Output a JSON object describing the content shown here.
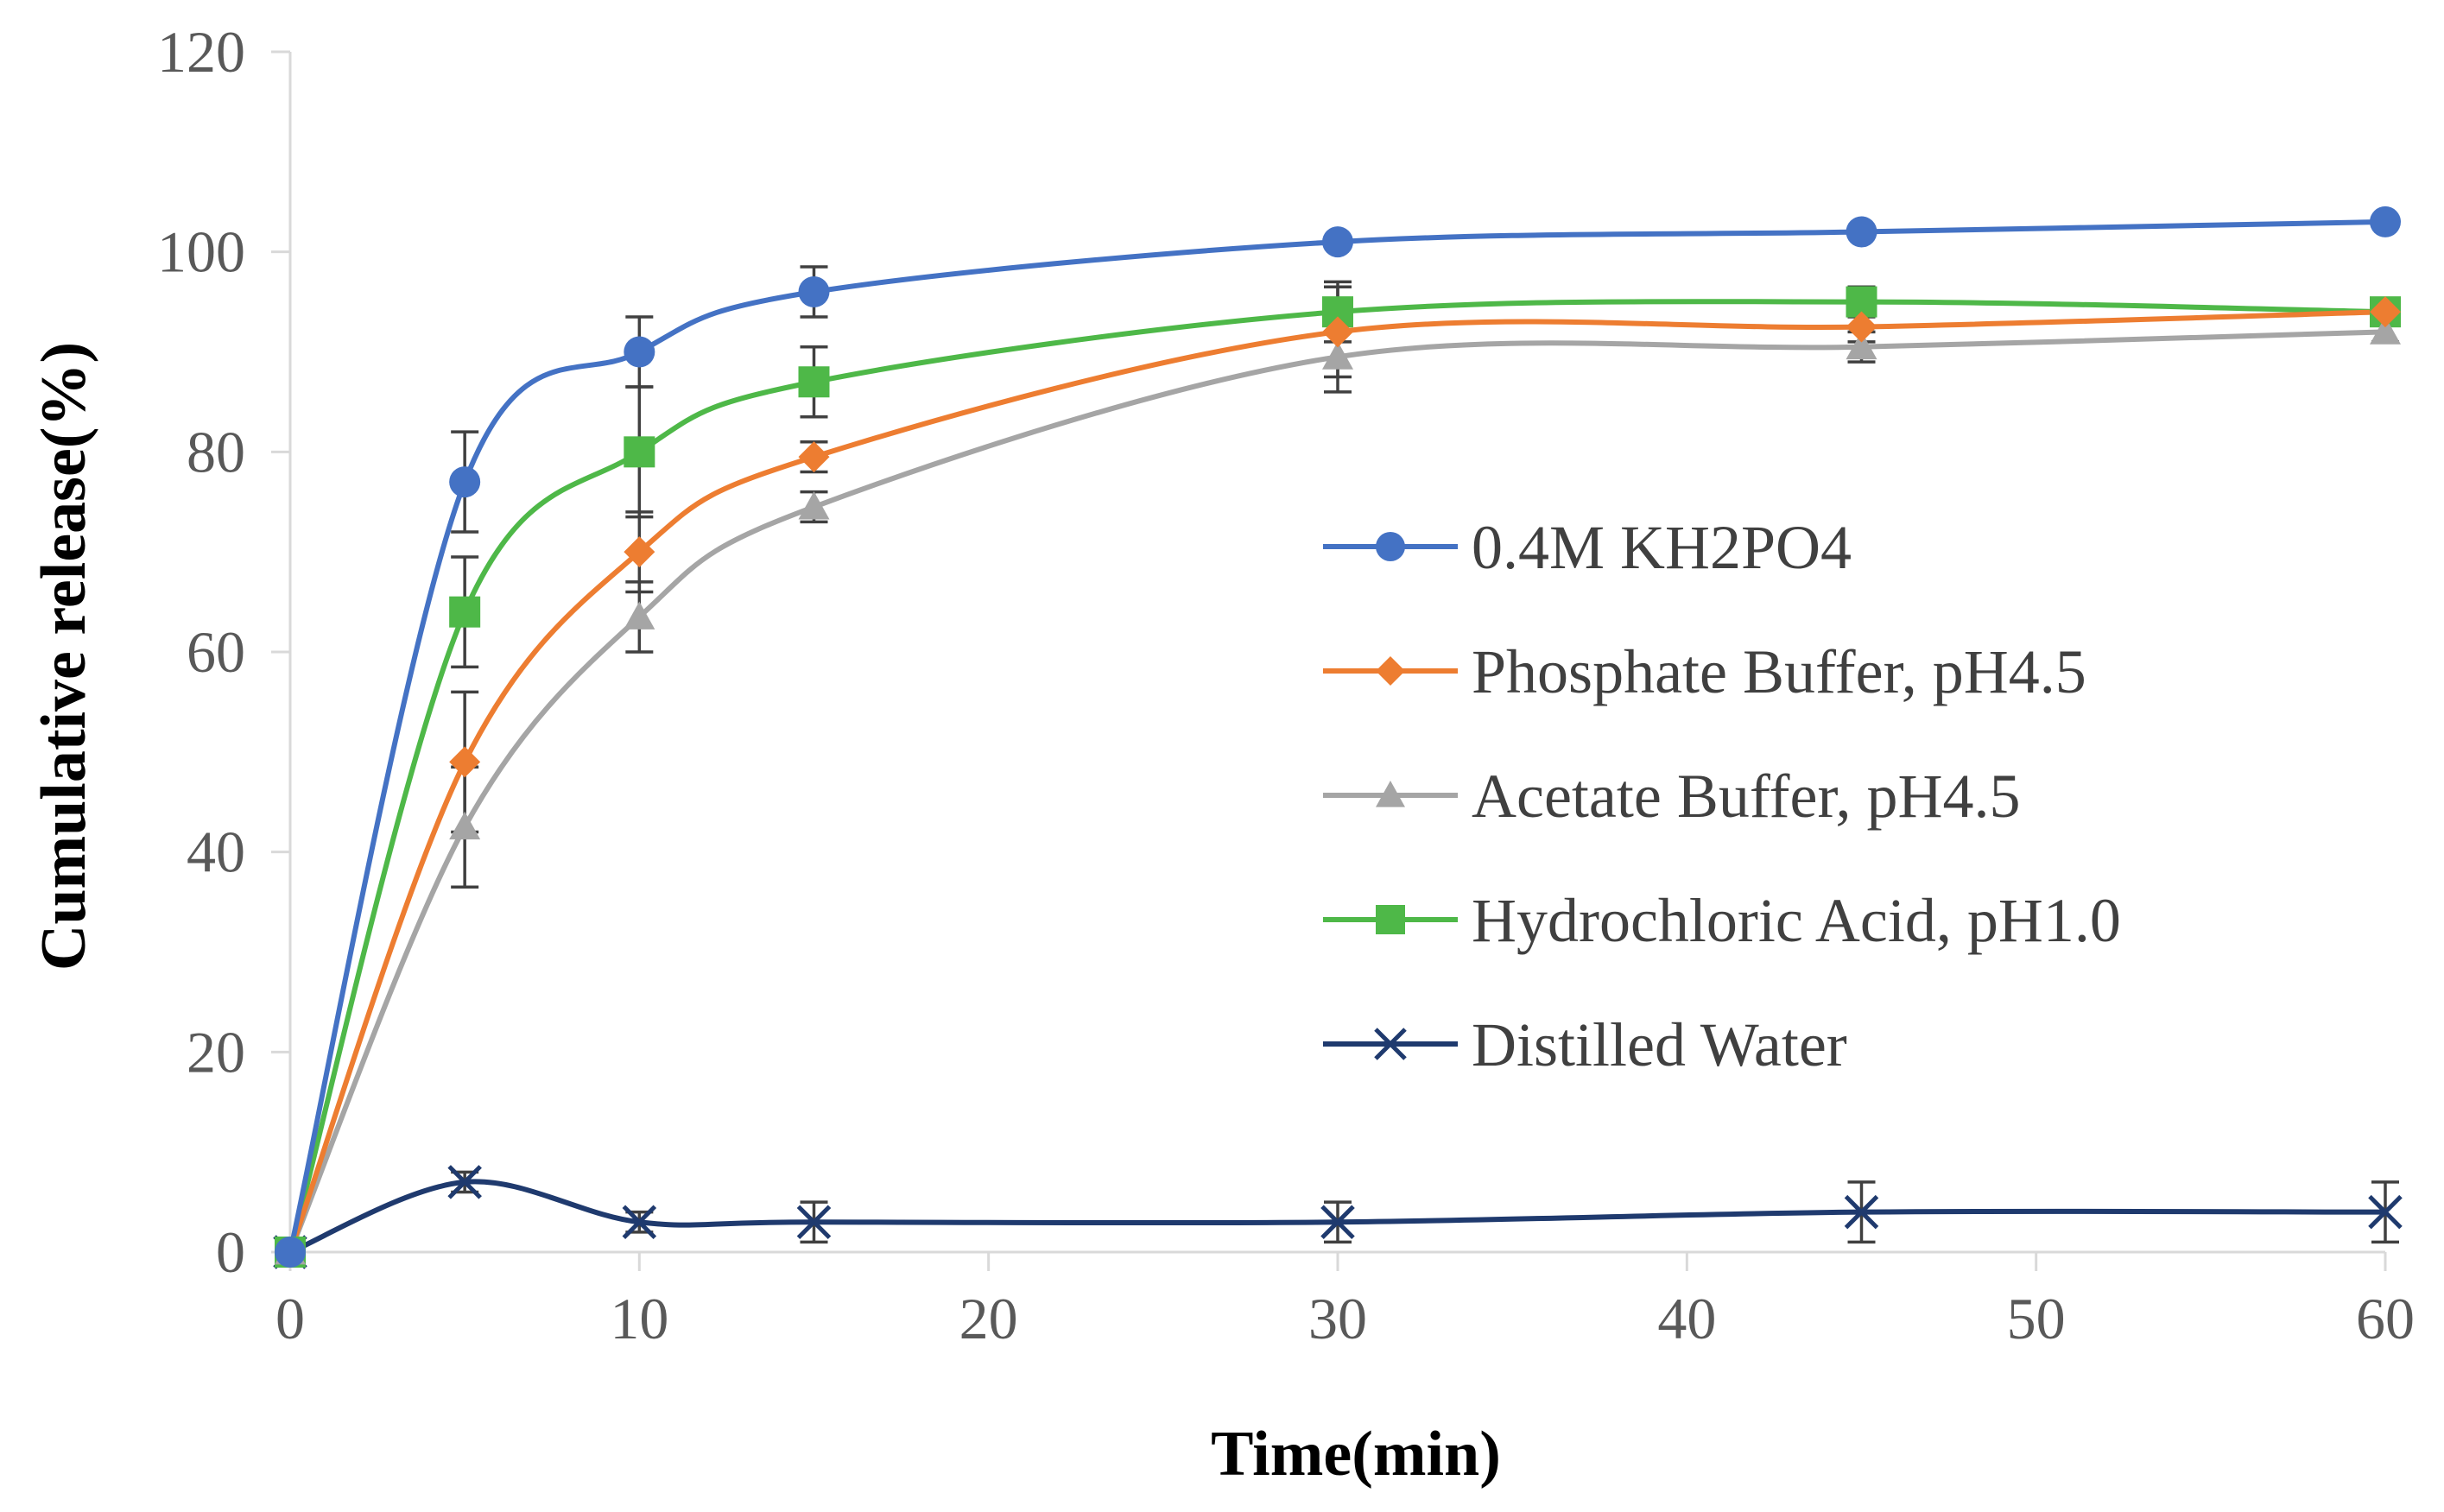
{
  "chart_data": {
    "type": "line",
    "title": "",
    "xlabel": "Time(min)",
    "ylabel": "Cumulative  release(%)",
    "xlim": [
      0,
      60
    ],
    "ylim": [
      0,
      120
    ],
    "x_ticks": [
      0,
      10,
      20,
      30,
      40,
      50,
      60
    ],
    "y_ticks": [
      0,
      20,
      40,
      60,
      80,
      100,
      120
    ],
    "x": [
      0,
      5,
      10,
      15,
      30,
      45,
      60
    ],
    "grid": false,
    "legend_position": "right",
    "series": [
      {
        "name": "0.4M KH2PO4",
        "color": "#4472C4",
        "marker": "circle",
        "values": [
          0,
          77,
          90,
          96,
          101,
          102,
          103
        ],
        "errors": [
          0,
          5,
          3.5,
          2.5,
          0,
          0,
          0
        ]
      },
      {
        "name": "Phosphate Buffer, pH4.5",
        "color": "#ED7D31",
        "marker": "diamond",
        "values": [
          0,
          49,
          70,
          79.5,
          92,
          92.5,
          94
        ],
        "errors": [
          0,
          7,
          4,
          1.5,
          4.5,
          1.5,
          1
        ]
      },
      {
        "name": "Acetate Buffer, pH4.5",
        "color": "#A5A5A5",
        "marker": "triangle",
        "values": [
          0,
          42.5,
          63.5,
          74.5,
          89.5,
          90.5,
          92
        ],
        "errors": [
          0,
          6,
          3.5,
          1.5,
          3.5,
          1.5,
          1
        ]
      },
      {
        "name": "Hydrochloric Acid, pH1.0",
        "color": "#4EB848",
        "marker": "square",
        "values": [
          0,
          64,
          80,
          87,
          94,
          95,
          94
        ],
        "errors": [
          0,
          5.5,
          6.5,
          3.5,
          3,
          1.5,
          1
        ]
      },
      {
        "name": "Distilled Water",
        "color": "#1F3A6E",
        "marker": "x",
        "values": [
          0,
          7,
          3,
          3,
          3,
          4,
          4
        ],
        "errors": [
          0,
          1,
          1,
          2,
          2,
          3,
          3
        ]
      }
    ]
  }
}
